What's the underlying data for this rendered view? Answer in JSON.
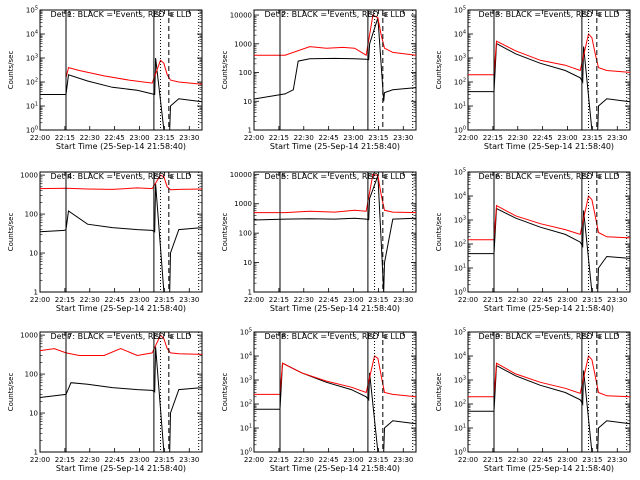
{
  "chart_data": [
    {
      "type": "line",
      "title": "Det 1: BLACK = Events, RED = LLD",
      "xlabel": "Start Time (25-Sep-14 21:58:40)",
      "ylabel": "Counts/sec",
      "x_ticks": [
        "22:00",
        "22:15",
        "22:30",
        "22:45",
        "23:00",
        "23:15",
        "23:30"
      ],
      "x_tick_minutes": [
        1.33,
        16.33,
        31.33,
        46.33,
        61.33,
        76.33,
        91.33
      ],
      "xlim_minutes": [
        1.33,
        99.0
      ],
      "yscale": "log",
      "ylim": [
        1,
        100000
      ],
      "y_ticks": [
        "10^0",
        "10^1",
        "10^2",
        "10^3",
        "10^4",
        "10^5"
      ],
      "y_tick_values": [
        1,
        10,
        100,
        1000,
        10000,
        100000
      ],
      "markers": [
        {
          "label": "P",
          "minute": 17.0
        },
        {
          "label": "S",
          "minute": 70.0
        },
        {
          "label": "E",
          "minute": 79.0
        }
      ],
      "series": [
        {
          "color": "#000000",
          "x": [
            1.33,
            17.0,
            18.5,
            30,
            45,
            60,
            69,
            70.5,
            71,
            76,
            79.5,
            80,
            85,
            99
          ],
          "y": [
            30,
            30,
            200,
            110,
            60,
            45,
            32,
            30,
            1000,
            1,
            1,
            10,
            20,
            15
          ]
        },
        {
          "color": "#ff0000",
          "x": [
            17.0,
            18.5,
            25,
            40,
            55,
            69,
            74,
            76,
            78,
            80,
            85,
            99
          ],
          "y": [
            150,
            400,
            300,
            180,
            120,
            90,
            800,
            600,
            200,
            120,
            100,
            80
          ]
        }
      ]
    },
    {
      "type": "line",
      "title": "Det 2: BLACK = Events, RED = LLD",
      "xlabel": "Start Time (25-Sep-14 21:58:40)",
      "ylabel": "Counts/sec",
      "x_ticks": [
        "22:00",
        "22:15",
        "22:30",
        "22:45",
        "23:00",
        "23:15",
        "23:30"
      ],
      "x_tick_minutes": [
        1.33,
        16.33,
        31.33,
        46.33,
        61.33,
        76.33,
        91.33
      ],
      "xlim_minutes": [
        1.33,
        99.0
      ],
      "yscale": "log",
      "ylim": [
        1,
        15000
      ],
      "y_ticks": [
        "1",
        "10",
        "100",
        "1000",
        "10000"
      ],
      "y_tick_values": [
        1,
        10,
        100,
        1000,
        10000
      ],
      "markers": [
        {
          "label": "P",
          "minute": 17.0
        },
        {
          "label": "S",
          "minute": 70.0
        },
        {
          "label": "E",
          "minute": 79.0
        }
      ],
      "series": [
        {
          "color": "#000000",
          "x": [
            1.33,
            20,
            25,
            28,
            35,
            50,
            62,
            69,
            70.5,
            71,
            76,
            79.5,
            80,
            85,
            99
          ],
          "y": [
            12,
            18,
            25,
            250,
            300,
            310,
            300,
            290,
            280,
            1000,
            8000,
            10,
            20,
            25,
            30
          ]
        },
        {
          "color": "#ff0000",
          "x": [
            1.33,
            20,
            35,
            45,
            55,
            62,
            69,
            73,
            76,
            78,
            80,
            85,
            99
          ],
          "y": [
            400,
            400,
            800,
            700,
            750,
            700,
            400,
            10000,
            8000,
            2000,
            700,
            500,
            400
          ]
        }
      ]
    },
    {
      "type": "line",
      "title": "Det 3: BLACK = Events, RED = LLD",
      "xlabel": "Start Time (25-Sep-14 21:58:40)",
      "ylabel": "Counts/sec",
      "x_ticks": [
        "22:00",
        "22:15",
        "22:30",
        "22:45",
        "23:00",
        "23:15",
        "23:30"
      ],
      "x_tick_minutes": [
        1.33,
        16.33,
        31.33,
        46.33,
        61.33,
        76.33,
        91.33
      ],
      "xlim_minutes": [
        1.33,
        99.0
      ],
      "yscale": "log",
      "ylim": [
        1,
        100000
      ],
      "y_ticks": [
        "10^0",
        "10^1",
        "10^2",
        "10^3",
        "10^4",
        "10^5"
      ],
      "y_tick_values": [
        1,
        10,
        100,
        1000,
        10000,
        100000
      ],
      "markers": [
        {
          "label": "P",
          "minute": 17.0
        },
        {
          "label": "S",
          "minute": 70.0
        },
        {
          "label": "E",
          "minute": 79.0
        }
      ],
      "series": [
        {
          "color": "#000000",
          "x": [
            1.33,
            17.0,
            18.5,
            30,
            45,
            60,
            69,
            70.5,
            71,
            76,
            79.5,
            80,
            85,
            99
          ],
          "y": [
            40,
            40,
            4000,
            1500,
            600,
            300,
            150,
            100,
            3000,
            1,
            1,
            10,
            20,
            15
          ]
        },
        {
          "color": "#ff0000",
          "x": [
            1.33,
            17.0,
            18.5,
            30,
            45,
            60,
            69,
            74,
            76,
            78,
            80,
            85,
            99
          ],
          "y": [
            200,
            200,
            5000,
            2000,
            800,
            500,
            300,
            10000,
            7000,
            1500,
            400,
            300,
            250
          ]
        }
      ]
    },
    {
      "type": "line",
      "title": "Det 4: BLACK = Events, RED = LLD",
      "xlabel": "Start Time (25-Sep-14 21:58:40)",
      "ylabel": "Counts/sec",
      "x_ticks": [
        "22:00",
        "22:15",
        "22:30",
        "22:45",
        "23:00",
        "23:15",
        "23:30"
      ],
      "x_tick_minutes": [
        1.33,
        16.33,
        31.33,
        46.33,
        61.33,
        76.33,
        91.33
      ],
      "xlim_minutes": [
        1.33,
        99.0
      ],
      "yscale": "log",
      "ylim": [
        1,
        1200
      ],
      "y_ticks": [
        "1",
        "10",
        "100",
        "1000"
      ],
      "y_tick_values": [
        1,
        10,
        100,
        1000
      ],
      "markers": [
        {
          "label": "P",
          "minute": 17.0
        },
        {
          "label": "S",
          "minute": 70.0
        },
        {
          "label": "E",
          "minute": 79.0
        }
      ],
      "series": [
        {
          "color": "#000000",
          "x": [
            1.33,
            16,
            17.0,
            18.5,
            30,
            45,
            60,
            69,
            70.5,
            71,
            76,
            79.5,
            80,
            85,
            99
          ],
          "y": [
            35,
            38,
            40,
            120,
            55,
            45,
            40,
            38,
            35,
            600,
            1,
            1,
            10,
            40,
            45
          ]
        },
        {
          "color": "#ff0000",
          "x": [
            1.33,
            17.0,
            30,
            45,
            60,
            69,
            74,
            76,
            78,
            80,
            85,
            99
          ],
          "y": [
            450,
            460,
            440,
            430,
            470,
            450,
            1000,
            900,
            500,
            420,
            430,
            440
          ]
        }
      ]
    },
    {
      "type": "line",
      "title": "Det 5: BLACK = Events, RED = LLD",
      "xlabel": "Start Time (25-Sep-14 21:58:40)",
      "ylabel": "Counts/sec",
      "x_ticks": [
        "22:00",
        "22:15",
        "22:30",
        "22:45",
        "23:00",
        "23:15",
        "23:30"
      ],
      "x_tick_minutes": [
        1.33,
        16.33,
        31.33,
        46.33,
        61.33,
        76.33,
        91.33
      ],
      "xlim_minutes": [
        1.33,
        99.0
      ],
      "yscale": "log",
      "ylim": [
        1,
        12000
      ],
      "y_ticks": [
        "1",
        "10",
        "100",
        "1000",
        "10000"
      ],
      "y_tick_values": [
        1,
        10,
        100,
        1000,
        10000
      ],
      "markers": [
        {
          "label": "P",
          "minute": 17.0
        },
        {
          "label": "S",
          "minute": 70.0
        },
        {
          "label": "E",
          "minute": 79.0
        }
      ],
      "series": [
        {
          "color": "#000000",
          "x": [
            1.33,
            20,
            35,
            50,
            62,
            69,
            70.5,
            71,
            76,
            79.5,
            80,
            85,
            99
          ],
          "y": [
            280,
            300,
            310,
            300,
            320,
            300,
            290,
            1500,
            9000,
            1,
            10,
            300,
            320
          ]
        },
        {
          "color": "#ff0000",
          "x": [
            1.33,
            20,
            35,
            50,
            62,
            69,
            73,
            76,
            78,
            80,
            85,
            99
          ],
          "y": [
            500,
            500,
            560,
            520,
            600,
            560,
            10000,
            9000,
            2000,
            600,
            520,
            500
          ]
        }
      ]
    },
    {
      "type": "line",
      "title": "Det 6: BLACK = Events, RED = LLD",
      "xlabel": "Start Time (25-Sep-14 21:58:40)",
      "ylabel": "Counts/sec",
      "x_ticks": [
        "22:00",
        "22:15",
        "22:30",
        "22:45",
        "23:00",
        "23:15",
        "23:30"
      ],
      "x_tick_minutes": [
        1.33,
        16.33,
        31.33,
        46.33,
        61.33,
        76.33,
        91.33
      ],
      "xlim_minutes": [
        1.33,
        99.0
      ],
      "yscale": "log",
      "ylim": [
        1,
        100000
      ],
      "y_ticks": [
        "10^0",
        "10^1",
        "10^2",
        "10^3",
        "10^4",
        "10^5"
      ],
      "y_tick_values": [
        1,
        10,
        100,
        1000,
        10000,
        100000
      ],
      "markers": [
        {
          "label": "P",
          "minute": 17.0
        },
        {
          "label": "S",
          "minute": 70.0
        },
        {
          "label": "E",
          "minute": 79.0
        }
      ],
      "series": [
        {
          "color": "#000000",
          "x": [
            1.33,
            17.0,
            18.5,
            30,
            45,
            60,
            69,
            70.5,
            71,
            76,
            79.5,
            80,
            85,
            99
          ],
          "y": [
            40,
            40,
            3000,
            1200,
            500,
            250,
            120,
            80,
            2500,
            1,
            1,
            10,
            30,
            25
          ]
        },
        {
          "color": "#ff0000",
          "x": [
            1.33,
            17.0,
            18.5,
            30,
            45,
            60,
            69,
            74,
            76,
            78,
            80,
            85,
            99
          ],
          "y": [
            150,
            150,
            4000,
            1500,
            700,
            400,
            250,
            10000,
            7000,
            1500,
            300,
            200,
            180
          ]
        }
      ]
    },
    {
      "type": "line",
      "title": "Det 7: BLACK = Events, RED = LLD",
      "xlabel": "Start Time (25-Sep-14 21:58:40)",
      "ylabel": "Counts/sec",
      "x_ticks": [
        "22:00",
        "22:15",
        "22:30",
        "22:45",
        "23:00",
        "23:15",
        "23:30"
      ],
      "x_tick_minutes": [
        1.33,
        16.33,
        31.33,
        46.33,
        61.33,
        76.33,
        91.33
      ],
      "xlim_minutes": [
        1.33,
        99.0
      ],
      "yscale": "log",
      "ylim": [
        1,
        1200
      ],
      "y_ticks": [
        "1",
        "10",
        "100",
        "1000"
      ],
      "y_tick_values": [
        1,
        10,
        100,
        1000
      ],
      "markers": [
        {
          "label": "P",
          "minute": 17.0
        },
        {
          "label": "S",
          "minute": 70.0
        },
        {
          "label": "E",
          "minute": 79.0
        }
      ],
      "series": [
        {
          "color": "#000000",
          "x": [
            1.33,
            17.0,
            20,
            30,
            45,
            60,
            69,
            70.5,
            71,
            76,
            79.5,
            80,
            85,
            99
          ],
          "y": [
            25,
            30,
            60,
            55,
            45,
            40,
            38,
            35,
            500,
            1,
            1,
            10,
            40,
            45
          ]
        },
        {
          "color": "#ff0000",
          "x": [
            1.33,
            10,
            17.0,
            25,
            40,
            50,
            60,
            69,
            74,
            76,
            78,
            80,
            85,
            99
          ],
          "y": [
            400,
            450,
            350,
            300,
            300,
            450,
            300,
            350,
            1000,
            800,
            450,
            350,
            330,
            320
          ]
        }
      ]
    },
    {
      "type": "line",
      "title": "Det 8: BLACK = Events, RED = LLD",
      "xlabel": "Start Time (25-Sep-14 21:58:40)",
      "ylabel": "Counts/sec",
      "x_ticks": [
        "22:00",
        "22:15",
        "22:30",
        "22:45",
        "23:00",
        "23:15",
        "23:30"
      ],
      "x_tick_minutes": [
        1.33,
        16.33,
        31.33,
        46.33,
        61.33,
        76.33,
        91.33
      ],
      "xlim_minutes": [
        1.33,
        99.0
      ],
      "yscale": "log",
      "ylim": [
        1,
        100000
      ],
      "y_ticks": [
        "10^0",
        "10^1",
        "10^2",
        "10^3",
        "10^4",
        "10^5"
      ],
      "y_tick_values": [
        1,
        10,
        100,
        1000,
        10000,
        100000
      ],
      "markers": [
        {
          "label": "P",
          "minute": 17.0
        },
        {
          "label": "S",
          "minute": 70.0
        },
        {
          "label": "E",
          "minute": 79.0
        }
      ],
      "series": [
        {
          "color": "#000000",
          "x": [
            1.33,
            17.0,
            18.5,
            30,
            45,
            60,
            69,
            70.5,
            71,
            76,
            79.5,
            80,
            85,
            99
          ],
          "y": [
            60,
            60,
            5000,
            2000,
            800,
            400,
            200,
            150,
            2000,
            1,
            1,
            10,
            20,
            15
          ]
        },
        {
          "color": "#ff0000",
          "x": [
            1.33,
            17.0,
            18.5,
            30,
            45,
            60,
            69,
            74,
            76,
            78,
            80,
            85,
            99
          ],
          "y": [
            250,
            250,
            5000,
            2000,
            900,
            500,
            300,
            10000,
            8000,
            1500,
            300,
            250,
            200
          ]
        }
      ]
    },
    {
      "type": "line",
      "title": "Det 9: BLACK = Events, RED = LLD",
      "xlabel": "Start Time (25-Sep-14 21:58:40)",
      "ylabel": "Counts/sec",
      "x_ticks": [
        "22:00",
        "22:15",
        "22:30",
        "22:45",
        "23:00",
        "23:15",
        "23:30"
      ],
      "x_tick_minutes": [
        1.33,
        16.33,
        31.33,
        46.33,
        61.33,
        76.33,
        91.33
      ],
      "xlim_minutes": [
        1.33,
        99.0
      ],
      "yscale": "log",
      "ylim": [
        1,
        100000
      ],
      "y_ticks": [
        "10^0",
        "10^1",
        "10^2",
        "10^3",
        "10^4",
        "10^5"
      ],
      "y_tick_values": [
        1,
        10,
        100,
        1000,
        10000,
        100000
      ],
      "markers": [
        {
          "label": "P",
          "minute": 17.0
        },
        {
          "label": "S",
          "minute": 70.0
        },
        {
          "label": "E",
          "minute": 79.0
        }
      ],
      "series": [
        {
          "color": "#000000",
          "x": [
            1.33,
            17.0,
            18.5,
            30,
            45,
            60,
            69,
            70.5,
            71,
            76,
            79.5,
            80,
            85,
            99
          ],
          "y": [
            50,
            50,
            4000,
            1500,
            600,
            300,
            150,
            100,
            2500,
            1,
            1,
            10,
            20,
            15
          ]
        },
        {
          "color": "#ff0000",
          "x": [
            1.33,
            17.0,
            18.5,
            30,
            45,
            60,
            69,
            74,
            76,
            78,
            80,
            85,
            99
          ],
          "y": [
            200,
            200,
            5000,
            1800,
            800,
            450,
            280,
            10000,
            7000,
            1500,
            300,
            220,
            200
          ]
        }
      ]
    }
  ]
}
